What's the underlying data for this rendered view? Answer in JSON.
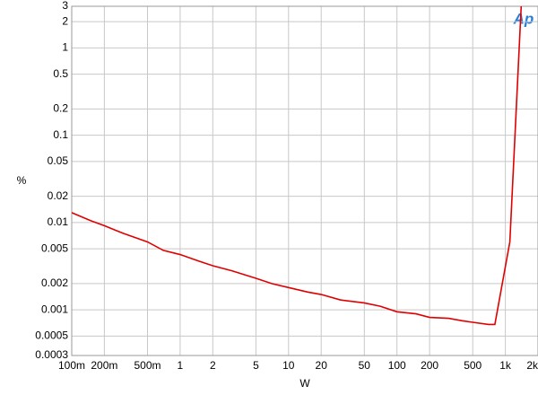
{
  "chart_data": {
    "type": "line",
    "logo": "Ap",
    "xlabel": "W",
    "ylabel": "%",
    "log_x": true,
    "log_y": true,
    "grid": true,
    "xlim": [
      0.1,
      2000
    ],
    "xticks": [
      {
        "value": 0.1,
        "label": "100m"
      },
      {
        "value": 0.2,
        "label": "200m"
      },
      {
        "value": 0.5,
        "label": "500m"
      },
      1,
      2,
      5,
      10,
      20,
      50,
      100,
      200,
      500,
      {
        "value": 1000,
        "label": "1k"
      },
      {
        "value": 2000,
        "label": "2k"
      }
    ],
    "ylim": [
      0.0003,
      3
    ],
    "yticks": [
      3,
      2,
      1,
      0.5,
      0.2,
      0.1,
      0.05,
      0.02,
      0.01,
      0.005,
      0.002,
      0.001,
      0.0005,
      0.0003
    ],
    "series": [
      {
        "color": "#e00000",
        "x": [
          0.1,
          0.15,
          0.2,
          0.3,
          0.5,
          0.7,
          1,
          1.5,
          2,
          3,
          5,
          7,
          10,
          15,
          20,
          30,
          50,
          70,
          100,
          150,
          200,
          300,
          400,
          500,
          700,
          800,
          1100,
          1400
        ],
        "values": [
          0.013,
          0.0105,
          0.0092,
          0.0075,
          0.006,
          0.0048,
          0.0043,
          0.0036,
          0.0032,
          0.0028,
          0.0023,
          0.002,
          0.0018,
          0.0016,
          0.0015,
          0.0013,
          0.0012,
          0.0011,
          0.00095,
          0.0009,
          0.00082,
          0.0008,
          0.00075,
          0.00072,
          0.00068,
          0.00068,
          0.006,
          3
        ]
      }
    ]
  }
}
